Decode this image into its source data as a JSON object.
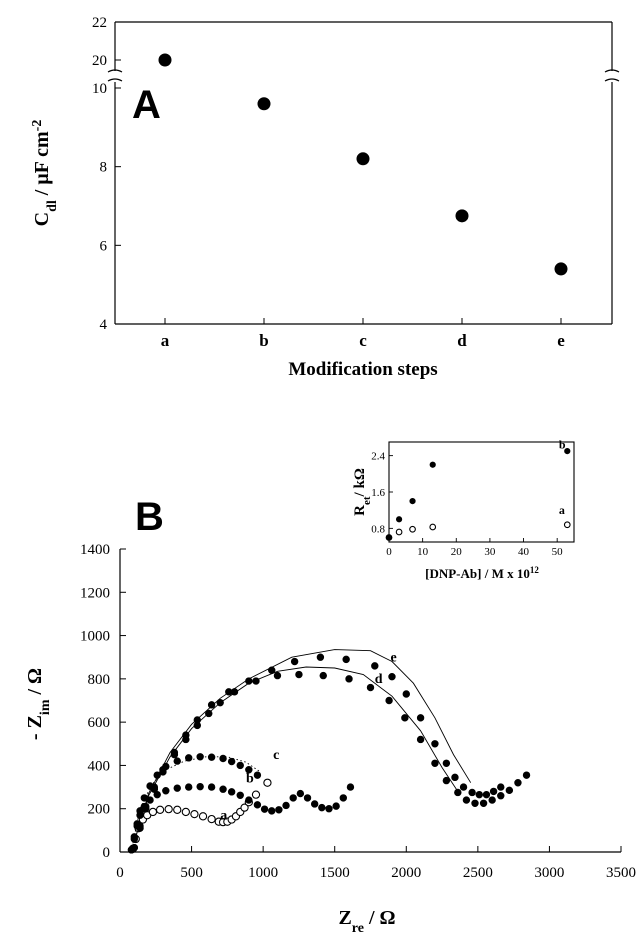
{
  "panels": [
    {
      "panel_label": "A",
      "chart_data": {
        "type": "scatter",
        "title": "",
        "xlabel": "Modification steps",
        "ylabel": "C_dl / μF cm^-2",
        "ylabel_parts": {
          "main": "C",
          "sub": "dl",
          "unit": " / μF cm",
          "sup": "-2"
        },
        "x_categories": [
          "a",
          "b",
          "c",
          "d",
          "e"
        ],
        "y_lower_range": [
          4,
          10
        ],
        "y_lower_ticks": [
          "4",
          "6",
          "8",
          "10"
        ],
        "y_upper_range": [
          20,
          22
        ],
        "y_upper_ticks": [
          "20",
          "22"
        ],
        "axis_break": true,
        "series": [
          {
            "marker": "filled-circle",
            "values": [
              20.0,
              9.6,
              8.2,
              6.75,
              5.4
            ]
          }
        ],
        "grid": false
      }
    },
    {
      "panel_label": "B",
      "chart_data": {
        "type": "scatter",
        "title": "",
        "xlabel": "Z_re / Ω",
        "xlabel_parts": {
          "main": "Z",
          "sub": "re",
          "unit": " / Ω"
        },
        "ylabel": "- Z_im / Ω",
        "ylabel_parts": {
          "pre": "- ",
          "main": "Z",
          "sub": "im",
          "unit": " / Ω"
        },
        "xlim": [
          0,
          3500
        ],
        "ylim": [
          0,
          1400
        ],
        "x_ticks": [
          "0",
          "500",
          "1000",
          "1500",
          "2000",
          "2500",
          "3000",
          "3500"
        ],
        "y_ticks": [
          "0",
          "200",
          "400",
          "600",
          "800",
          "1000",
          "1200",
          "1400"
        ],
        "grid": false,
        "series": [
          {
            "name": "a",
            "marker": "open-circle",
            "x": [
              90,
              110,
              130,
              160,
              190,
              230,
              280,
              340,
              400,
              460,
              520,
              580,
              640,
              690,
              720,
              750,
              780,
              810,
              840,
              870,
              900,
              950,
              1030
            ],
            "y": [
              15,
              60,
              110,
              150,
              170,
              185,
              195,
              198,
              195,
              185,
              175,
              165,
              152,
              140,
              138,
              140,
              150,
              165,
              185,
              205,
              230,
              265,
              320
            ]
          },
          {
            "name": "b",
            "marker": "filled-circle",
            "x": [
              80,
              100,
              120,
              140,
              170,
              210,
              260,
              320,
              400,
              480,
              560,
              640,
              720,
              780,
              840,
              900,
              960,
              1010,
              1060,
              1110,
              1160,
              1210,
              1260,
              1310,
              1360,
              1410,
              1460,
              1510,
              1560,
              1610
            ],
            "y": [
              10,
              60,
              120,
              170,
              210,
              240,
              265,
              283,
              295,
              300,
              302,
              300,
              290,
              278,
              262,
              240,
              218,
              198,
              190,
              195,
              215,
              250,
              270,
              250,
              222,
              205,
              200,
              212,
              250,
              300
            ]
          },
          {
            "name": "c",
            "marker": "filled-circle",
            "x": [
              80,
              100,
              120,
              140,
              170,
              210,
              260,
              320,
              400,
              480,
              560,
              640,
              720,
              780,
              840,
              900,
              960
            ],
            "y": [
              10,
              70,
              130,
              190,
              250,
              305,
              355,
              395,
              420,
              435,
              440,
              438,
              432,
              418,
              400,
              380,
              355
            ]
          },
          {
            "name": "d",
            "marker": "filled-circle",
            "x": [
              100,
              140,
              180,
              240,
              300,
              380,
              460,
              540,
              620,
              700,
              800,
              950,
              1100,
              1250,
              1420,
              1600,
              1750,
              1880,
              1990,
              2100,
              2200,
              2280,
              2360,
              2420,
              2480,
              2540,
              2600,
              2660,
              2720,
              2780,
              2840
            ],
            "y": [
              20,
              110,
              200,
              290,
              370,
              450,
              520,
              585,
              640,
              690,
              740,
              790,
              815,
              820,
              815,
              800,
              760,
              700,
              620,
              520,
              410,
              330,
              275,
              240,
              225,
              225,
              240,
              260,
              285,
              320,
              355
            ]
          },
          {
            "name": "e",
            "marker": "filled-circle",
            "x": [
              100,
              140,
              180,
              240,
              300,
              380,
              460,
              540,
              640,
              760,
              900,
              1060,
              1220,
              1400,
              1580,
              1780,
              1900,
              2000,
              2100,
              2200,
              2280,
              2340,
              2400,
              2460,
              2510,
              2560,
              2610,
              2660
            ],
            "y": [
              20,
              120,
              210,
              300,
              380,
              460,
              540,
              610,
              680,
              740,
              790,
              840,
              880,
              900,
              890,
              860,
              810,
              730,
              620,
              500,
              410,
              345,
              300,
              275,
              265,
              265,
              280,
              300
            ]
          }
        ],
        "fit_curves": [
          {
            "for": "c",
            "style": "dotted",
            "x": [
              90,
              140,
              220,
              320,
              450,
              600,
              750,
              880,
              980
            ],
            "y": [
              40,
              200,
              310,
              380,
              420,
              440,
              440,
              415,
              370
            ]
          },
          {
            "for": "d",
            "style": "solid",
            "x": [
              110,
              200,
              350,
              500,
              700,
              900,
              1100,
              1300,
              1500,
              1700,
              1900,
              2100,
              2250,
              2350
            ],
            "y": [
              70,
              260,
              440,
              570,
              690,
              780,
              835,
              855,
              850,
              820,
              720,
              560,
              390,
              290
            ]
          },
          {
            "for": "e",
            "style": "solid",
            "x": [
              110,
              200,
              350,
              500,
              700,
              900,
              1200,
              1500,
              1750,
              1900,
              2050,
              2200,
              2330,
              2450
            ],
            "y": [
              70,
              270,
              460,
              590,
              710,
              800,
              900,
              935,
              930,
              880,
              780,
              620,
              450,
              320
            ]
          }
        ]
      }
    },
    {
      "panel_label": "",
      "inset": true,
      "chart_data": {
        "type": "scatter",
        "title": "",
        "xlabel": "[DNP-Ab] / M x 10^12",
        "xlabel_parts": {
          "main": "[DNP-Ab] / M x 10",
          "sup": "12"
        },
        "ylabel": "R_et / kΩ",
        "ylabel_parts": {
          "main": "R",
          "sub": "et",
          "unit": "/ kΩ"
        },
        "xlim": [
          0,
          55
        ],
        "ylim": [
          0.5,
          2.7
        ],
        "x_ticks": [
          "0",
          "10",
          "20",
          "30",
          "40",
          "50"
        ],
        "y_ticks": [
          "0.8",
          "1.6",
          "2.4"
        ],
        "grid": false,
        "series": [
          {
            "name": "a",
            "marker": "open-circle",
            "x": [
              0,
              3,
              7,
              13,
              53
            ],
            "y": [
              0.6,
              0.72,
              0.78,
              0.83,
              0.88
            ]
          },
          {
            "name": "b",
            "marker": "filled-circle",
            "x": [
              0,
              3,
              7,
              13,
              53
            ],
            "y": [
              0.6,
              1.0,
              1.4,
              2.2,
              2.5
            ]
          }
        ]
      }
    }
  ]
}
